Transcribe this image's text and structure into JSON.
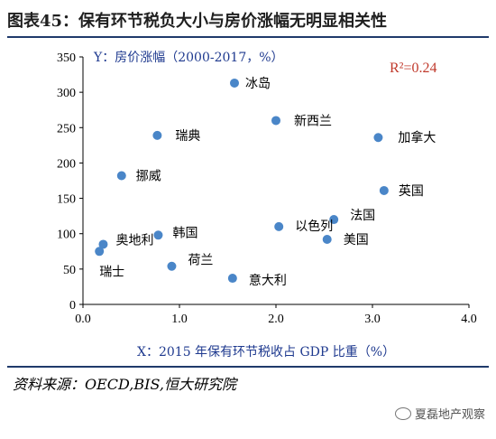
{
  "title": "图表45：保有环节税负大小与房价涨幅无明显相关性",
  "source": "资料来源：OECD,BIS,恒大研究院",
  "watermark": "夏磊地产观察",
  "chart_data": {
    "type": "scatter",
    "ylabel": "Y：房价涨幅（2000-2017，%）",
    "xlabel": "X：2015 年保有环节税收占 GDP 比重（%）",
    "annotation": "R²=0.24",
    "xlim": [
      0,
      4
    ],
    "ylim": [
      0,
      350
    ],
    "xticks": [
      "0.0",
      "1.0",
      "2.0",
      "3.0",
      "4.0"
    ],
    "yticks": [
      "0",
      "50",
      "100",
      "150",
      "200",
      "250",
      "300",
      "350"
    ],
    "point_color": "#4a86c8",
    "points": [
      {
        "label": "冰岛",
        "x": 1.57,
        "y": 313
      },
      {
        "label": "新西兰",
        "x": 2.0,
        "y": 260
      },
      {
        "label": "加拿大",
        "x": 3.06,
        "y": 236
      },
      {
        "label": "瑞典",
        "x": 0.77,
        "y": 239
      },
      {
        "label": "挪威",
        "x": 0.4,
        "y": 182
      },
      {
        "label": "英国",
        "x": 3.12,
        "y": 161
      },
      {
        "label": "法国",
        "x": 2.6,
        "y": 120
      },
      {
        "label": "以色列",
        "x": 2.03,
        "y": 110
      },
      {
        "label": "韩国",
        "x": 0.78,
        "y": 98
      },
      {
        "label": "美国",
        "x": 2.53,
        "y": 92
      },
      {
        "label": "奥地利",
        "x": 0.21,
        "y": 85
      },
      {
        "label": "瑞士",
        "x": 0.17,
        "y": 75
      },
      {
        "label": "荷兰",
        "x": 0.92,
        "y": 54
      },
      {
        "label": "意大利",
        "x": 1.55,
        "y": 37
      }
    ]
  }
}
